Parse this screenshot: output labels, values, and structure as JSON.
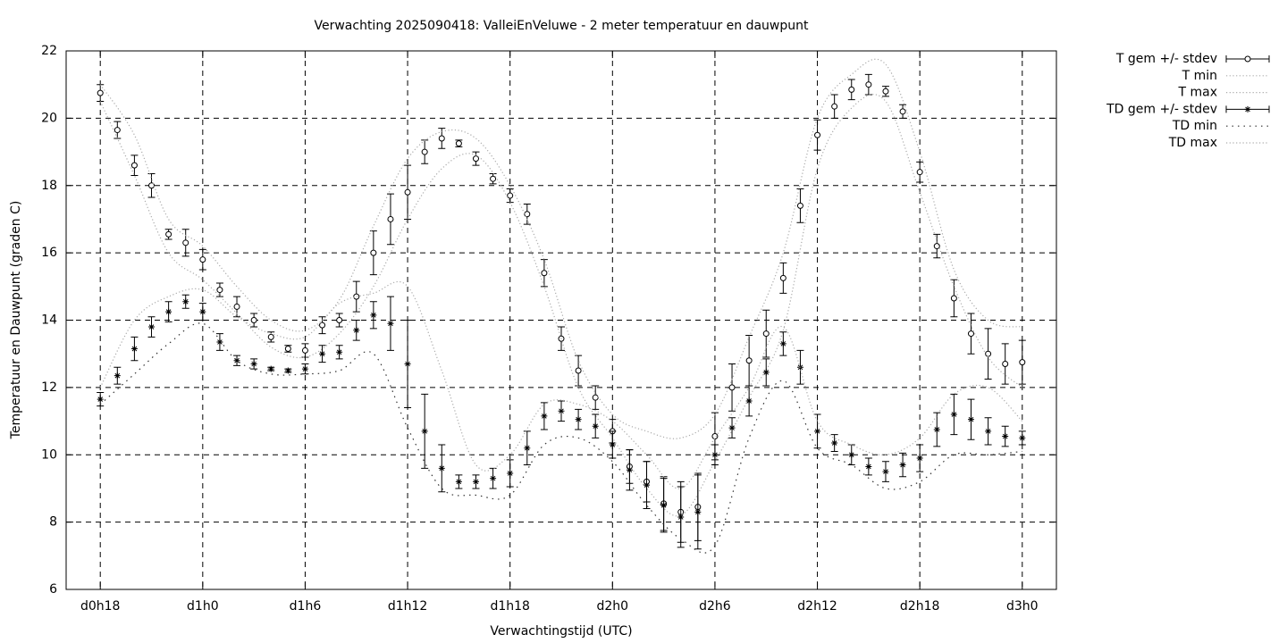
{
  "chart_data": {
    "type": "errorbar-line",
    "title": "Verwachting 2025090418: ValleiEnVeluwe - 2 meter temperatuur en dauwpunt",
    "x_label": "Verwachtingstijd (UTC)",
    "y_label": "Temperatuur en Dauwpunt (graden C)",
    "xlim": [
      16,
      74
    ],
    "ylim": [
      6,
      22
    ],
    "xticks": [
      {
        "value": 18,
        "label": "d0h18"
      },
      {
        "value": 24,
        "label": "d1h0"
      },
      {
        "value": 30,
        "label": "d1h6"
      },
      {
        "value": 36,
        "label": "d1h12"
      },
      {
        "value": 42,
        "label": "d1h18"
      },
      {
        "value": 48,
        "label": "d2h0"
      },
      {
        "value": 54,
        "label": "d2h6"
      },
      {
        "value": 60,
        "label": "d2h12"
      },
      {
        "value": 66,
        "label": "d2h18"
      },
      {
        "value": 72,
        "label": "d3h0"
      }
    ],
    "yticks": [
      6,
      8,
      10,
      12,
      14,
      16,
      18,
      20,
      22
    ],
    "grid": true,
    "legend": "top-right",
    "x": [
      18,
      19,
      20,
      21,
      22,
      23,
      24,
      25,
      26,
      27,
      28,
      29,
      30,
      31,
      32,
      33,
      34,
      35,
      36,
      37,
      38,
      39,
      40,
      41,
      42,
      43,
      44,
      45,
      46,
      47,
      48,
      49,
      50,
      51,
      52,
      53,
      54,
      55,
      56,
      57,
      58,
      59,
      60,
      61,
      62,
      63,
      64,
      65,
      66,
      67,
      68,
      69,
      70,
      71,
      72
    ],
    "series": [
      {
        "name": "T gem +/- stdev",
        "style": "errorbars",
        "marker": "circle",
        "color": "#000000",
        "values": [
          20.75,
          19.65,
          18.6,
          18.0,
          16.55,
          16.3,
          15.8,
          14.9,
          14.4,
          14.0,
          13.5,
          13.15,
          13.1,
          13.85,
          14.0,
          14.7,
          16.0,
          17.0,
          17.8,
          19.0,
          19.4,
          19.25,
          18.8,
          18.2,
          17.7,
          17.15,
          15.4,
          13.45,
          12.5,
          11.7,
          10.7,
          9.65,
          9.2,
          8.55,
          8.3,
          8.45,
          10.55,
          12.0,
          12.8,
          13.6,
          15.25,
          17.4,
          19.5,
          20.35,
          20.85,
          21.0,
          20.8,
          20.2,
          18.4,
          16.2,
          14.65,
          13.6,
          13.0,
          12.7,
          12.75
        ],
        "errors": [
          0.25,
          0.25,
          0.3,
          0.35,
          0.15,
          0.4,
          0.3,
          0.2,
          0.3,
          0.2,
          0.15,
          0.1,
          0.2,
          0.25,
          0.2,
          0.45,
          0.65,
          0.75,
          0.8,
          0.35,
          0.3,
          0.1,
          0.2,
          0.15,
          0.2,
          0.3,
          0.4,
          0.35,
          0.45,
          0.35,
          0.35,
          0.5,
          0.6,
          0.8,
          0.9,
          1.0,
          0.7,
          0.7,
          0.75,
          0.7,
          0.45,
          0.5,
          0.45,
          0.35,
          0.3,
          0.3,
          0.15,
          0.2,
          0.3,
          0.35,
          0.55,
          0.6,
          0.75,
          0.6,
          0.65
        ]
      },
      {
        "name": "T min",
        "style": "dotted",
        "color": "#aaaaaa",
        "x": [
          18,
          20,
          22,
          24,
          26,
          28,
          30,
          32,
          34,
          36,
          38,
          40,
          42,
          44,
          46,
          48,
          50,
          52,
          54,
          56,
          58,
          60,
          62,
          64,
          66,
          68,
          70,
          72
        ],
        "values": [
          20.5,
          18.3,
          16.0,
          15.2,
          14.2,
          13.2,
          12.9,
          13.6,
          15.0,
          17.0,
          18.5,
          18.9,
          17.5,
          15.0,
          12.0,
          10.5,
          9.0,
          8.2,
          9.8,
          11.7,
          13.7,
          18.5,
          20.3,
          20.5,
          17.8,
          15.0,
          12.9,
          12.0
        ]
      },
      {
        "name": "T max",
        "style": "dotted",
        "color": "#aaaaaa",
        "x": [
          18,
          20,
          22,
          24,
          26,
          28,
          30,
          32,
          34,
          36,
          38,
          40,
          42,
          44,
          46,
          48,
          50,
          52,
          54,
          56,
          58,
          60,
          62,
          64,
          66,
          68,
          70,
          72
        ],
        "values": [
          21.0,
          19.5,
          17.0,
          16.2,
          15.0,
          14.0,
          13.7,
          14.6,
          16.8,
          18.8,
          19.6,
          19.4,
          18.0,
          15.8,
          12.8,
          11.2,
          10.7,
          10.5,
          11.2,
          13.5,
          16.0,
          20.0,
          21.3,
          21.6,
          19.0,
          15.5,
          14.0,
          13.8
        ]
      },
      {
        "name": "TD gem +/- stdev",
        "style": "errorbars",
        "marker": "asterisk",
        "color": "#000000",
        "values": [
          11.65,
          12.35,
          13.15,
          13.8,
          14.25,
          14.55,
          14.25,
          13.35,
          12.8,
          12.7,
          12.55,
          12.5,
          12.55,
          13.0,
          13.05,
          13.7,
          14.15,
          13.9,
          12.7,
          10.7,
          9.6,
          9.2,
          9.2,
          9.3,
          9.45,
          10.2,
          11.15,
          11.3,
          11.05,
          10.85,
          10.3,
          9.55,
          9.1,
          8.5,
          8.15,
          8.3,
          10.0,
          10.8,
          11.6,
          12.45,
          13.3,
          12.6,
          10.7,
          10.35,
          10.0,
          9.65,
          9.5,
          9.7,
          9.9,
          10.75,
          11.2,
          11.05,
          10.7,
          10.55,
          10.5
        ],
        "errors": [
          0.2,
          0.25,
          0.35,
          0.3,
          0.3,
          0.2,
          0.25,
          0.25,
          0.15,
          0.15,
          0.05,
          0.05,
          0.15,
          0.25,
          0.2,
          0.3,
          0.4,
          0.8,
          1.3,
          1.1,
          0.7,
          0.2,
          0.2,
          0.3,
          0.4,
          0.5,
          0.4,
          0.3,
          0.3,
          0.35,
          0.4,
          0.6,
          0.7,
          0.8,
          0.9,
          1.1,
          0.3,
          0.3,
          0.45,
          0.4,
          0.35,
          0.5,
          0.5,
          0.25,
          0.3,
          0.25,
          0.3,
          0.35,
          0.4,
          0.5,
          0.6,
          0.6,
          0.4,
          0.3,
          0.2
        ]
      },
      {
        "name": "TD min",
        "style": "dotted",
        "color": "#333333",
        "x": [
          18,
          20,
          22,
          24,
          26,
          28,
          30,
          32,
          34,
          36,
          38,
          40,
          42,
          44,
          46,
          48,
          50,
          52,
          54,
          56,
          58,
          60,
          62,
          64,
          66,
          68,
          70,
          72
        ],
        "values": [
          11.5,
          12.4,
          13.3,
          13.9,
          12.8,
          12.4,
          12.4,
          12.5,
          13.0,
          10.8,
          9.0,
          8.8,
          8.8,
          10.3,
          10.5,
          9.8,
          8.5,
          7.5,
          7.3,
          10.5,
          12.2,
          10.2,
          9.7,
          9.0,
          9.2,
          10.0,
          10.0,
          10.1
        ]
      },
      {
        "name": "TD max",
        "style": "dotted",
        "color": "#aaaaaa",
        "x": [
          18,
          20,
          22,
          24,
          26,
          28,
          30,
          32,
          34,
          36,
          38,
          40,
          42,
          44,
          46,
          48,
          50,
          52,
          54,
          56,
          58,
          60,
          62,
          64,
          66,
          68,
          70,
          72
        ],
        "values": [
          12.0,
          14.0,
          14.7,
          14.9,
          14.1,
          13.6,
          13.5,
          14.5,
          14.8,
          15.0,
          12.5,
          9.7,
          10.0,
          11.5,
          11.5,
          11.0,
          10.0,
          9.0,
          10.5,
          12.0,
          13.8,
          11.0,
          10.3,
          10.0,
          10.5,
          11.8,
          12.0,
          11.0
        ]
      }
    ]
  }
}
